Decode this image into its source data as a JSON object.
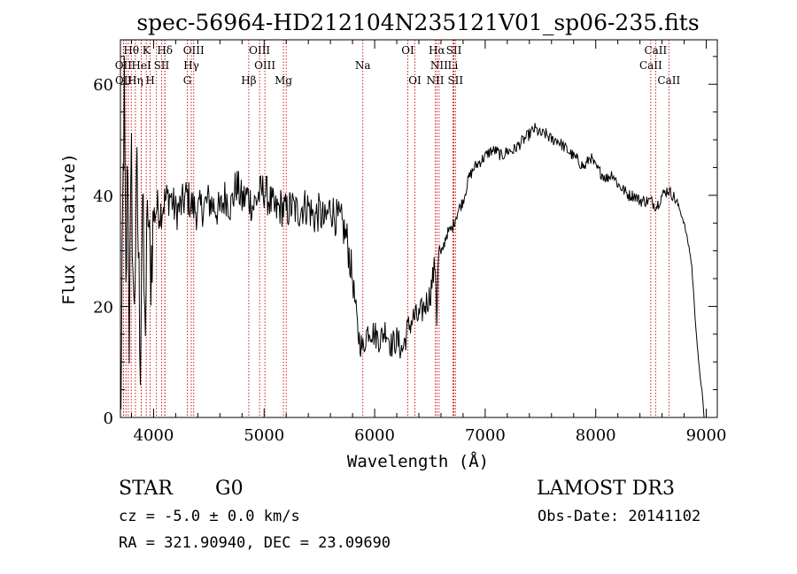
{
  "chart_data": {
    "type": "line",
    "title": "spec-56964-HD212104N235121V01_sp06-235.fits",
    "xlabel": "Wavelength (Å)",
    "ylabel": "Flux (relative)",
    "xlim": [
      3700,
      9100
    ],
    "ylim": [
      0,
      68
    ],
    "xticks": [
      4000,
      5000,
      6000,
      7000,
      8000,
      9000
    ],
    "yticks": [
      0,
      20,
      40,
      60
    ],
    "grid": false,
    "series": [
      {
        "name": "spectrum",
        "x": [
          3700,
          3710,
          3720,
          3735,
          3750,
          3765,
          3780,
          3800,
          3820,
          3850,
          3880,
          3900,
          3920,
          3950,
          3970,
          4000,
          4030,
          4060,
          4100,
          4150,
          4200,
          4250,
          4300,
          4350,
          4400,
          4450,
          4500,
          4550,
          4600,
          4650,
          4700,
          4750,
          4800,
          4850,
          4900,
          4950,
          5000,
          5050,
          5100,
          5150,
          5200,
          5250,
          5300,
          5350,
          5400,
          5450,
          5500,
          5550,
          5600,
          5650,
          5700,
          5750,
          5800,
          5850,
          5880,
          5900,
          5920,
          5950,
          6000,
          6050,
          6100,
          6150,
          6200,
          6250,
          6300,
          6350,
          6400,
          6450,
          6500,
          6550,
          6562,
          6580,
          6600,
          6650,
          6700,
          6750,
          6800,
          6850,
          6900,
          6950,
          7000,
          7050,
          7100,
          7150,
          7200,
          7250,
          7300,
          7350,
          7400,
          7450,
          7500,
          7550,
          7600,
          7650,
          7700,
          7750,
          7800,
          7850,
          7900,
          7950,
          8000,
          8050,
          8100,
          8150,
          8200,
          8250,
          8300,
          8350,
          8400,
          8450,
          8500,
          8550,
          8600,
          8650,
          8700,
          8750,
          8800,
          8850,
          8870,
          8900,
          8930,
          8960,
          8980
        ],
        "values": [
          0,
          10,
          35,
          58,
          20,
          50,
          15,
          45,
          18,
          42,
          12,
          40,
          15,
          38,
          25,
          36,
          38,
          37,
          39,
          40,
          37,
          38,
          40,
          38,
          37,
          38,
          39,
          38,
          37,
          40,
          38,
          42,
          39,
          40,
          38,
          40,
          41,
          39,
          37,
          38,
          37,
          38,
          37,
          38,
          38,
          36,
          37,
          35,
          38,
          36,
          35,
          32,
          25,
          15,
          13,
          12,
          15,
          16,
          15,
          14,
          16,
          13,
          14,
          12,
          16,
          18,
          18,
          20,
          22,
          28,
          18,
          30,
          29,
          33,
          34,
          37,
          39,
          43,
          45,
          46,
          47,
          48,
          48,
          47,
          48,
          48,
          49,
          50,
          51,
          52,
          51,
          51,
          50,
          50,
          49,
          48,
          47,
          46,
          45,
          47,
          45,
          44,
          43,
          44,
          42,
          41,
          40,
          40,
          39,
          39,
          39,
          38,
          40,
          41,
          40,
          38,
          35,
          30,
          27,
          18,
          10,
          5,
          0
        ]
      }
    ],
    "lines_row1": [
      {
        "label": "Hθ",
        "x": 3798
      },
      {
        "label": "K",
        "x": 3934
      },
      {
        "label": "Hδ",
        "x": 4102
      },
      {
        "label": "OIII",
        "x": 4363
      },
      {
        "label": "OIII",
        "x": 4959
      },
      {
        "label": "OI",
        "x": 6300
      },
      {
        "label": "Hα",
        "x": 6563
      },
      {
        "label": "SII",
        "x": 6717
      },
      {
        "label": "CaII",
        "x": 8542
      }
    ],
    "lines_row2": [
      {
        "label": "OII",
        "x": 3727
      },
      {
        "label": "HeI",
        "x": 3889
      },
      {
        "label": "SII",
        "x": 4072
      },
      {
        "label": "Hγ",
        "x": 4341
      },
      {
        "label": "OIII",
        "x": 5007
      },
      {
        "label": "Na",
        "x": 5893
      },
      {
        "label": "NII",
        "x": 6583
      },
      {
        "label": "Li",
        "x": 6708
      },
      {
        "label": "CaII",
        "x": 8498
      }
    ],
    "lines_row3": [
      {
        "label": "OII",
        "x": 3729
      },
      {
        "label": "Hη",
        "x": 3835
      },
      {
        "label": "H",
        "x": 3969
      },
      {
        "label": "G",
        "x": 4305
      },
      {
        "label": "Hβ",
        "x": 4861
      },
      {
        "label": "Mg",
        "x": 5175
      },
      {
        "label": "OI",
        "x": 6364
      },
      {
        "label": "NII",
        "x": 6548
      },
      {
        "label": "SII",
        "x": 6731
      },
      {
        "label": "CaII",
        "x": 8662
      }
    ],
    "extra_marker_x": [
      3750,
      3771,
      3889,
      4026,
      4102,
      5200,
      6716
    ]
  },
  "info": {
    "class": "STAR",
    "subclass": "G0",
    "survey": "LAMOST DR3",
    "cz": "cz = -5.0 ± 0.0 km/s",
    "obs_date": "Obs-Date: 20141102",
    "coords": "RA = 321.90940, DEC =  23.09690"
  }
}
